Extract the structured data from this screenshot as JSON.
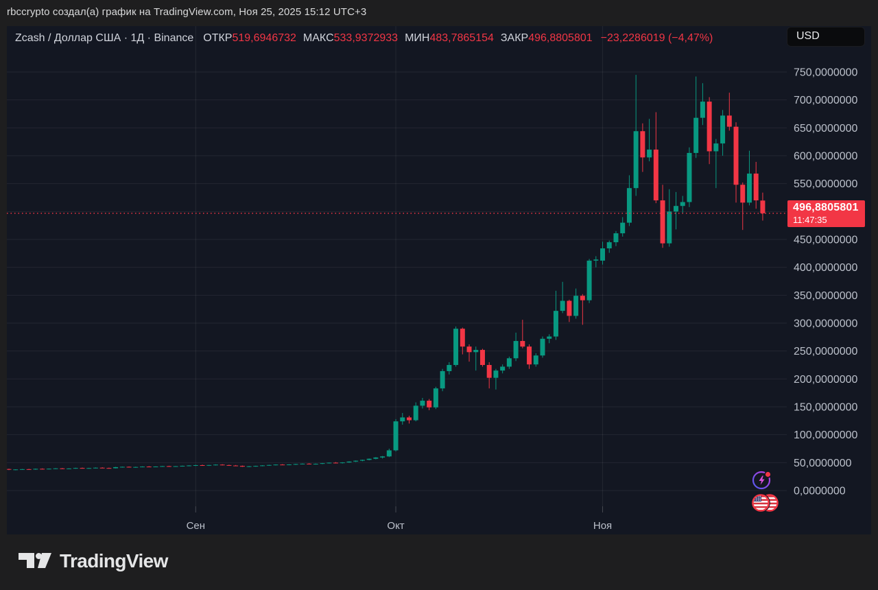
{
  "attribution": "rbccrypto создал(а) график на TradingView.com, Ноя 25, 2025 15:12 UTC+3",
  "header": {
    "symbol": "Zcash / Доллар США · 1Д · Binance",
    "ohlc": [
      {
        "label": "ОТКР",
        "value": "519,6946732"
      },
      {
        "label": "МАКС",
        "value": "533,9372933"
      },
      {
        "label": "МИН",
        "value": "483,7865154"
      },
      {
        "label": "ЗАКР",
        "value": "496,8805801"
      }
    ],
    "change": "−23,2286019 (−4,47%)",
    "currency_button": "USD"
  },
  "price_label": {
    "price": "496,8805801",
    "time": "11:47:35"
  },
  "footer": {
    "logo_text": "TradingView"
  },
  "icons": [
    {
      "name": "lightning-icon",
      "badge_color": "#f23645"
    },
    {
      "name": "us-flag-icon"
    }
  ],
  "colors": {
    "page_bg": "#1e1e1f",
    "chart_bg": "#131722",
    "grid": "rgba(255,255,255,0.07)",
    "axis_text": "#bcc1cb",
    "up": "#089981",
    "down": "#f23645",
    "last_price_line": "#f23645"
  },
  "chart_data": {
    "type": "candlestick",
    "title": "Zcash / Доллар США · 1Д · Binance",
    "symbol": "Zcash / Доллар США",
    "interval": "1Д",
    "exchange": "Binance",
    "grid": true,
    "ylim": [
      0,
      750
    ],
    "y_ticks": [
      {
        "v": 750,
        "label": "750,0000000"
      },
      {
        "v": 700,
        "label": "700,0000000"
      },
      {
        "v": 650,
        "label": "650,0000000"
      },
      {
        "v": 600,
        "label": "600,0000000"
      },
      {
        "v": 550,
        "label": "550,0000000"
      },
      {
        "v": 500,
        "label": "500,0000000"
      },
      {
        "v": 450,
        "label": "450,0000000"
      },
      {
        "v": 400,
        "label": "400,0000000"
      },
      {
        "v": 350,
        "label": "350,0000000"
      },
      {
        "v": 300,
        "label": "300,0000000"
      },
      {
        "v": 250,
        "label": "250,0000000"
      },
      {
        "v": 200,
        "label": "200,0000000"
      },
      {
        "v": 150,
        "label": "150,0000000"
      },
      {
        "v": 100,
        "label": "100,0000000"
      },
      {
        "v": 50,
        "label": "50,0000000"
      },
      {
        "v": 0,
        "label": "0,0000000"
      }
    ],
    "x_ticks": [
      {
        "label": "Сен",
        "index": 28
      },
      {
        "label": "Окт",
        "index": 58
      },
      {
        "label": "Ноя",
        "index": 89
      }
    ],
    "last_price": 496.8805801,
    "last_time": "11:47:35",
    "candles": [
      [
        38.5,
        39.2,
        36.6,
        37.3
      ],
      [
        37.3,
        38.1,
        36.4,
        37.8
      ],
      [
        37.8,
        38.7,
        37.0,
        38.3
      ],
      [
        38.3,
        38.9,
        37.1,
        37.6
      ],
      [
        37.6,
        39.4,
        37.2,
        38.9
      ],
      [
        38.9,
        39.7,
        37.8,
        38.2
      ],
      [
        38.2,
        39.5,
        37.8,
        39.1
      ],
      [
        39.1,
        40.1,
        38.4,
        39.7
      ],
      [
        39.7,
        40.4,
        38.6,
        39.0
      ],
      [
        39.0,
        39.9,
        38.3,
        39.5
      ],
      [
        39.5,
        40.9,
        39.0,
        40.4
      ],
      [
        40.4,
        41.1,
        39.3,
        39.8
      ],
      [
        39.8,
        40.7,
        39.2,
        40.2
      ],
      [
        40.2,
        41.4,
        39.6,
        40.9
      ],
      [
        40.9,
        41.7,
        39.9,
        40.3
      ],
      [
        40.3,
        41.0,
        39.4,
        39.9
      ],
      [
        39.9,
        42.4,
        39.6,
        41.9
      ],
      [
        41.9,
        42.9,
        41.1,
        42.5
      ],
      [
        42.5,
        43.1,
        41.4,
        41.8
      ],
      [
        41.8,
        42.7,
        40.9,
        42.2
      ],
      [
        42.2,
        43.4,
        41.7,
        42.9
      ],
      [
        42.9,
        43.7,
        42.1,
        42.5
      ],
      [
        42.5,
        43.3,
        41.8,
        43.0
      ],
      [
        43.0,
        44.1,
        42.4,
        43.7
      ],
      [
        43.7,
        44.4,
        42.7,
        43.1
      ],
      [
        43.1,
        43.9,
        42.5,
        43.6
      ],
      [
        43.6,
        44.7,
        42.9,
        44.3
      ],
      [
        44.3,
        45.4,
        43.5,
        44.9
      ],
      [
        44.9,
        46.1,
        43.9,
        45.5
      ],
      [
        45.5,
        46.4,
        44.5,
        44.8
      ],
      [
        44.8,
        45.9,
        44.1,
        45.7
      ],
      [
        45.7,
        46.9,
        44.9,
        46.4
      ],
      [
        46.4,
        47.1,
        45.1,
        45.6
      ],
      [
        45.6,
        46.3,
        44.4,
        44.8
      ],
      [
        44.8,
        45.7,
        43.7,
        44.2
      ],
      [
        44.2,
        44.8,
        42.3,
        42.8
      ],
      [
        42.8,
        43.9,
        41.9,
        43.5
      ],
      [
        43.5,
        44.5,
        42.7,
        44.1
      ],
      [
        44.1,
        45.4,
        43.5,
        45.0
      ],
      [
        45.0,
        46.2,
        44.3,
        45.8
      ],
      [
        45.8,
        46.9,
        45.1,
        46.5
      ],
      [
        46.5,
        47.3,
        45.5,
        45.9
      ],
      [
        45.9,
        47.1,
        45.3,
        46.7
      ],
      [
        46.7,
        47.9,
        45.9,
        47.5
      ],
      [
        47.5,
        48.5,
        46.7,
        48.1
      ],
      [
        48.1,
        48.9,
        46.9,
        47.3
      ],
      [
        47.3,
        48.4,
        46.5,
        47.9
      ],
      [
        47.9,
        49.4,
        47.3,
        49.0
      ],
      [
        49.0,
        50.4,
        48.3,
        49.9
      ],
      [
        49.9,
        50.9,
        48.7,
        49.2
      ],
      [
        49.2,
        50.7,
        48.5,
        50.3
      ],
      [
        50.3,
        52.4,
        49.7,
        51.9
      ],
      [
        51.9,
        53.9,
        51.1,
        53.4
      ],
      [
        53.4,
        55.4,
        52.5,
        54.9
      ],
      [
        54.9,
        57.4,
        54.1,
        56.9
      ],
      [
        56.9,
        59.9,
        55.9,
        59.2
      ],
      [
        59.2,
        61.9,
        57.4,
        61.1
      ],
      [
        61.1,
        75.0,
        59.9,
        72.0
      ],
      [
        72,
        128,
        70,
        124
      ],
      [
        124,
        139,
        118,
        131
      ],
      [
        131,
        134,
        120,
        126
      ],
      [
        126,
        158,
        124,
        152
      ],
      [
        152,
        166,
        147,
        161
      ],
      [
        161,
        164,
        144,
        149
      ],
      [
        149,
        186,
        146,
        183
      ],
      [
        183,
        218,
        178,
        214
      ],
      [
        214,
        230,
        208,
        225
      ],
      [
        225,
        294,
        222,
        290
      ],
      [
        290,
        292,
        244,
        258
      ],
      [
        258,
        262,
        231,
        248
      ],
      [
        248,
        258,
        215,
        252
      ],
      [
        252,
        254,
        222,
        225
      ],
      [
        225,
        230,
        183,
        202
      ],
      [
        202,
        218,
        181,
        215
      ],
      [
        215,
        226,
        210,
        222
      ],
      [
        222,
        240,
        218,
        237
      ],
      [
        237,
        283,
        232,
        268
      ],
      [
        268,
        306,
        255,
        258
      ],
      [
        258,
        262,
        218,
        226
      ],
      [
        226,
        246,
        222,
        242
      ],
      [
        242,
        276,
        238,
        272
      ],
      [
        272,
        280,
        264,
        276
      ],
      [
        276,
        358,
        270,
        322
      ],
      [
        322,
        374,
        318,
        340
      ],
      [
        340,
        342,
        302,
        313
      ],
      [
        313,
        362,
        308,
        349
      ],
      [
        349,
        352,
        297,
        341
      ],
      [
        341,
        415,
        336,
        412
      ],
      [
        412,
        420,
        400,
        414
      ],
      [
        412,
        446,
        405,
        434
      ],
      [
        434,
        448,
        426,
        445
      ],
      [
        445,
        465,
        438,
        461
      ],
      [
        461,
        490,
        455,
        480
      ],
      [
        480,
        565,
        474,
        542
      ],
      [
        542,
        745,
        528,
        644
      ],
      [
        644,
        658,
        571,
        597
      ],
      [
        597,
        666,
        590,
        611
      ],
      [
        611,
        678,
        515,
        520
      ],
      [
        520,
        548,
        435,
        443
      ],
      [
        443,
        540,
        437,
        500
      ],
      [
        500,
        535,
        468,
        510
      ],
      [
        510,
        528,
        496,
        517
      ],
      [
        517,
        615,
        508,
        605
      ],
      [
        605,
        742,
        596,
        668
      ],
      [
        668,
        730,
        655,
        697
      ],
      [
        697,
        705,
        585,
        608
      ],
      [
        608,
        630,
        542,
        622
      ],
      [
        622,
        682,
        600,
        672
      ],
      [
        672,
        713,
        645,
        652
      ],
      [
        652,
        660,
        516,
        548
      ],
      [
        548,
        552,
        467,
        516
      ],
      [
        516,
        609,
        511,
        568
      ],
      [
        568,
        589,
        505,
        520
      ],
      [
        519.6946732,
        533.9372933,
        483.7865154,
        496.8805801
      ]
    ]
  }
}
